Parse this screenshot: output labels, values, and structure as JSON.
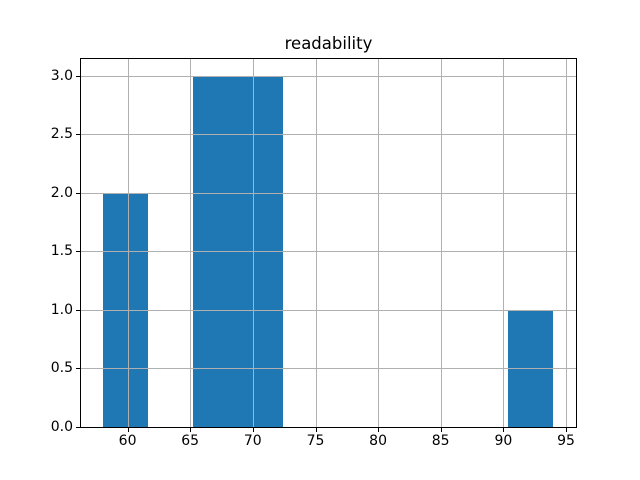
{
  "chart_data": {
    "type": "bar",
    "subtype": "histogram",
    "title": "readability",
    "xlabel": "",
    "ylabel": "",
    "bars": [
      {
        "x_start": 58.0,
        "x_end": 61.6,
        "height": 2.0
      },
      {
        "x_start": 65.2,
        "x_end": 72.4,
        "height": 3.0
      },
      {
        "x_start": 90.4,
        "x_end": 94.0,
        "height": 1.0
      }
    ],
    "x_tick_values": [
      60,
      65,
      70,
      75,
      80,
      85,
      90,
      95
    ],
    "x_tick_labels": [
      "60",
      "65",
      "70",
      "75",
      "80",
      "85",
      "90",
      "95"
    ],
    "y_tick_values": [
      0.0,
      0.5,
      1.0,
      1.5,
      2.0,
      2.5,
      3.0
    ],
    "y_tick_labels": [
      "0.0",
      "0.5",
      "1.0",
      "1.5",
      "2.0",
      "2.5",
      "3.0"
    ],
    "xlim": [
      56.2,
      95.8
    ],
    "ylim": [
      0,
      3.15
    ],
    "grid": true,
    "grid_over_bars": true,
    "legend": "none",
    "bar_color": "#1f77b4",
    "grid_color": "#b0b0b0",
    "spine_color": "#000000",
    "text_color": "#000000",
    "background_color": "#ffffff"
  }
}
